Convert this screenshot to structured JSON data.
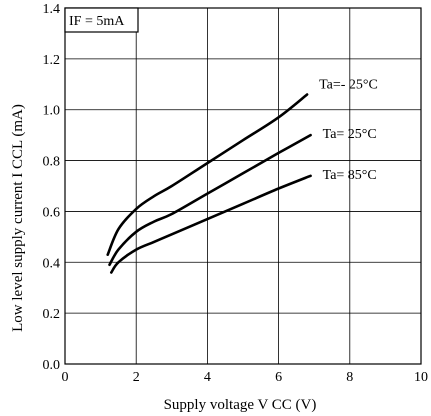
{
  "chart_data": {
    "type": "line",
    "title": "",
    "xlabel": "Supply voltage V CC (V)",
    "ylabel": "Low level supply current I CCL (mA)",
    "xlim": [
      0,
      10
    ],
    "ylim": [
      0,
      1.4
    ],
    "xticks": [
      "0",
      "2",
      "4",
      "6",
      "8",
      "10"
    ],
    "yticks": [
      "0.0",
      "0.2",
      "0.4",
      "0.6",
      "0.8",
      "1.0",
      "1.2",
      "1.4"
    ],
    "grid": true,
    "legend": "none",
    "condition_label": "IF = 5mA",
    "series": [
      {
        "name": "Ta=- 25°C",
        "x": [
          1.2,
          1.5,
          2.0,
          2.5,
          3.0,
          4.0,
          5.0,
          6.0,
          6.8
        ],
        "y": [
          0.43,
          0.53,
          0.61,
          0.66,
          0.7,
          0.79,
          0.88,
          0.97,
          1.06
        ]
      },
      {
        "name": "Ta= 25°C",
        "x": [
          1.25,
          1.5,
          2.0,
          2.5,
          3.0,
          4.0,
          5.0,
          6.0,
          6.9
        ],
        "y": [
          0.39,
          0.45,
          0.52,
          0.56,
          0.59,
          0.67,
          0.75,
          0.83,
          0.9
        ]
      },
      {
        "name": "Ta= 85°C",
        "x": [
          1.3,
          1.5,
          2.0,
          2.5,
          3.0,
          4.0,
          5.0,
          6.0,
          6.9
        ],
        "y": [
          0.36,
          0.4,
          0.45,
          0.48,
          0.51,
          0.57,
          0.63,
          0.69,
          0.74
        ]
      }
    ]
  }
}
